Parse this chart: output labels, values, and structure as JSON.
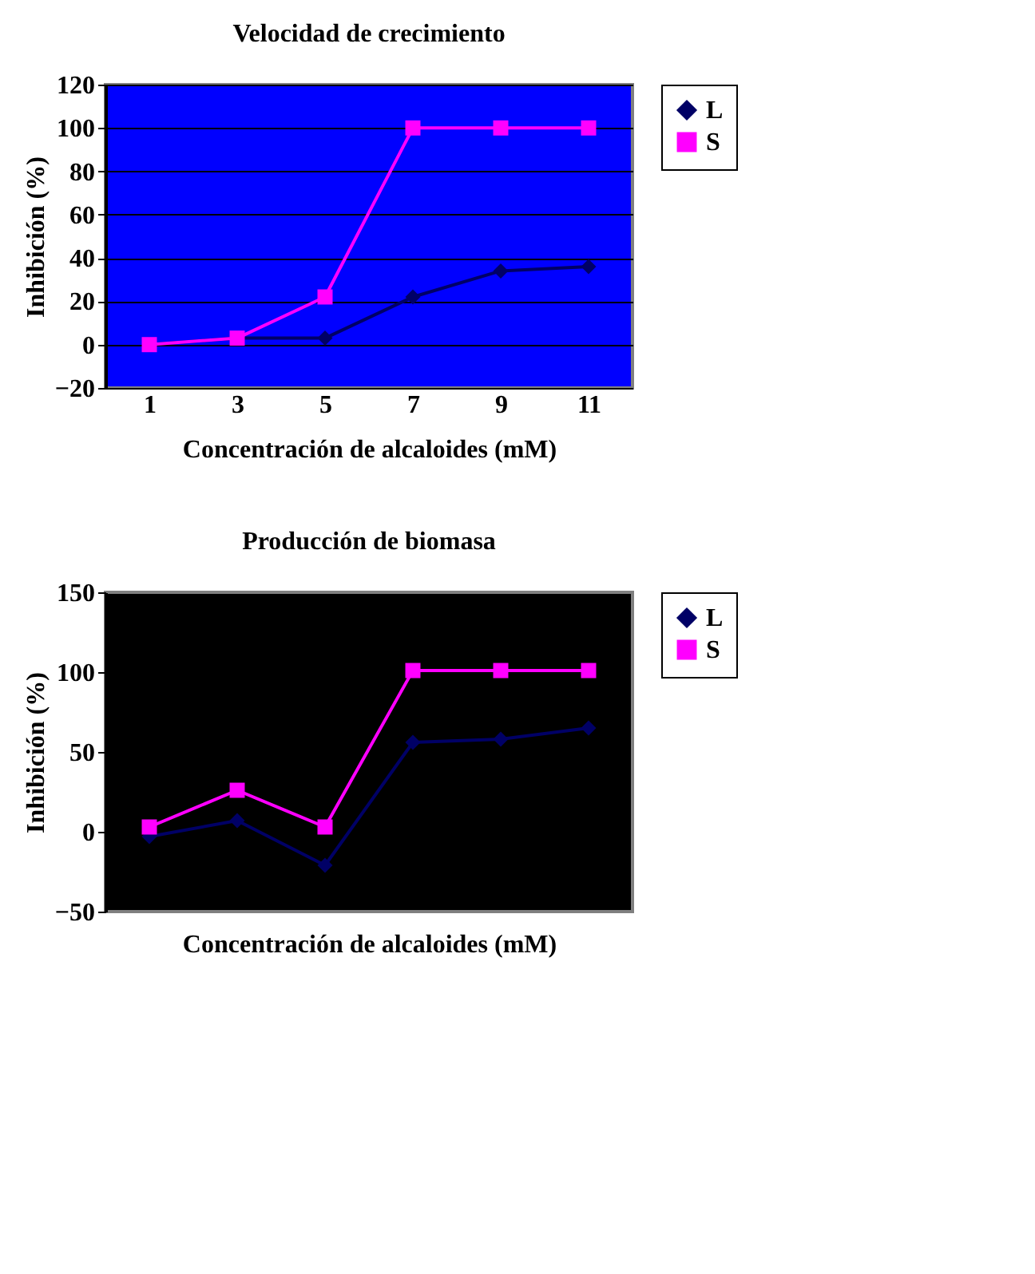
{
  "chart_data": [
    {
      "type": "line",
      "title": "Velocidad de crecimiento",
      "xlabel": "Concentración de alcaloides (mM)",
      "ylabel": "Inhibición (%)",
      "categories": [
        "1",
        "3",
        "5",
        "7",
        "9",
        "11"
      ],
      "ylim": [
        -20,
        120
      ],
      "yticks": [
        -20,
        0,
        20,
        40,
        60,
        80,
        100,
        120
      ],
      "grid": "y",
      "legend": "right",
      "series": [
        {
          "name": "L",
          "color": "#000066",
          "marker": "diamond",
          "values": [
            0,
            3,
            3,
            22,
            34,
            36
          ]
        },
        {
          "name": "S",
          "color": "#ff00ff",
          "marker": "square",
          "values": [
            0,
            3,
            22,
            100,
            100,
            100
          ]
        }
      ]
    },
    {
      "type": "line",
      "title": "Producción de biomasa",
      "xlabel": "Concentración de alcaloides (mM)",
      "ylabel": "Inhibición (%)",
      "categories": [
        null,
        null,
        null,
        null,
        null,
        null
      ],
      "ylim": [
        -50,
        150
      ],
      "yticks": [
        -50,
        0,
        50,
        100,
        150
      ],
      "grid": false,
      "legend": "right",
      "tick_labels": "y",
      "series": [
        {
          "name": "L",
          "color": "#000066",
          "marker": "diamond",
          "values": [
            -3,
            7,
            -21,
            56,
            58,
            65
          ]
        },
        {
          "name": "S",
          "color": "#ff00ff",
          "marker": "square",
          "values": [
            3,
            26,
            3,
            101,
            101,
            101
          ]
        }
      ]
    }
  ]
}
